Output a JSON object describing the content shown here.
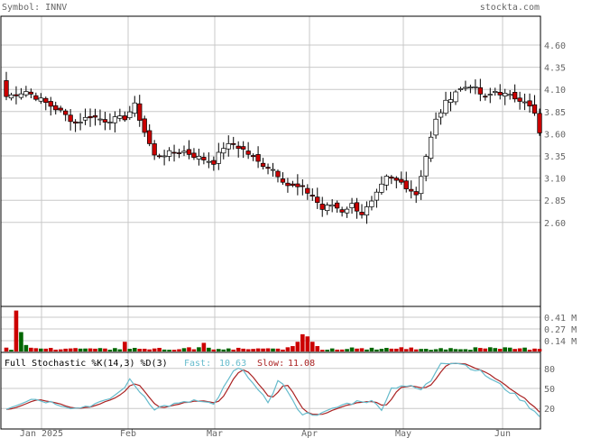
{
  "header": {
    "symbol_label": "Symbol: INNV",
    "site": "stockta.com"
  },
  "colors": {
    "up_body": "#ffffff",
    "down_body": "#cc0000",
    "candle_edge": "#000000",
    "vol_up": "#006600",
    "vol_down": "#cc0000",
    "fast": "#66bbcc",
    "slow": "#aa2222",
    "grid": "#c8c8c8",
    "text": "#666666"
  },
  "stoch": {
    "title": "Full Stochastic %K(14,3) %D(3)",
    "fast_label": "Fast:",
    "fast_value": "10.63",
    "slow_label": "Slow:",
    "slow_value": "11.08"
  },
  "chart_data": {
    "type": "candlestick",
    "price_axis": {
      "ticks": [
        "4.60",
        "4.35",
        "4.10",
        "3.85",
        "3.60",
        "3.35",
        "3.10",
        "2.85",
        "2.60"
      ],
      "ylim": [
        2.45,
        4.75
      ]
    },
    "volume_axis": {
      "ticks": [
        "0.41 M",
        "0.27 M",
        "0.14 M"
      ],
      "ylim": [
        0,
        0.41
      ]
    },
    "stoch_axis": {
      "ticks": [
        "80",
        "50",
        "20"
      ],
      "ylim": [
        0,
        100
      ]
    },
    "x_labels": [
      "Jan 2025",
      "Feb",
      "Mar",
      "Apr",
      "May",
      "Jun"
    ],
    "grid": true,
    "price_anchors": [
      [
        0,
        4.02
      ],
      [
        4,
        4.08
      ],
      [
        7,
        3.98
      ],
      [
        11,
        3.85
      ],
      [
        14,
        3.72
      ],
      [
        17,
        3.8
      ],
      [
        20,
        3.75
      ],
      [
        24,
        3.78
      ],
      [
        26,
        3.92
      ],
      [
        28,
        3.62
      ],
      [
        30,
        3.35
      ],
      [
        33,
        3.38
      ],
      [
        36,
        3.4
      ],
      [
        39,
        3.33
      ],
      [
        42,
        3.28
      ],
      [
        44,
        3.45
      ],
      [
        46,
        3.48
      ],
      [
        48,
        3.42
      ],
      [
        51,
        3.28
      ],
      [
        54,
        3.2
      ],
      [
        57,
        3.02
      ],
      [
        60,
        2.98
      ],
      [
        62,
        2.9
      ],
      [
        64,
        2.75
      ],
      [
        66,
        2.8
      ],
      [
        68,
        2.73
      ],
      [
        70,
        2.8
      ],
      [
        72,
        2.7
      ],
      [
        74,
        2.82
      ],
      [
        77,
        3.1
      ],
      [
        80,
        3.05
      ],
      [
        83,
        2.92
      ],
      [
        85,
        3.35
      ],
      [
        87,
        3.75
      ],
      [
        89,
        3.95
      ],
      [
        91,
        4.08
      ],
      [
        94,
        4.15
      ],
      [
        97,
        4.0
      ],
      [
        99,
        4.08
      ],
      [
        102,
        4.02
      ],
      [
        105,
        3.98
      ],
      [
        107,
        3.82
      ],
      [
        108,
        3.6
      ]
    ],
    "volume_spikes": {
      "2": 0.38,
      "3": 0.18,
      "4": 0.06,
      "24": 0.09,
      "40": 0.08,
      "58": 0.05,
      "59": 0.09,
      "60": 0.16,
      "61": 0.14,
      "62": 0.09,
      "63": 0.05
    },
    "stoch_anchors": [
      [
        0,
        20
      ],
      [
        5,
        35
      ],
      [
        10,
        28
      ],
      [
        14,
        20
      ],
      [
        20,
        30
      ],
      [
        23,
        45
      ],
      [
        25,
        62
      ],
      [
        28,
        38
      ],
      [
        30,
        20
      ],
      [
        33,
        25
      ],
      [
        36,
        28
      ],
      [
        38,
        32
      ],
      [
        42,
        25
      ],
      [
        46,
        75
      ],
      [
        48,
        80
      ],
      [
        51,
        45
      ],
      [
        53,
        30
      ],
      [
        55,
        60
      ],
      [
        56,
        58
      ],
      [
        58,
        30
      ],
      [
        60,
        12
      ],
      [
        64,
        12
      ],
      [
        68,
        25
      ],
      [
        72,
        32
      ],
      [
        74,
        30
      ],
      [
        76,
        20
      ],
      [
        78,
        50
      ],
      [
        80,
        55
      ],
      [
        82,
        52
      ],
      [
        84,
        48
      ],
      [
        86,
        62
      ],
      [
        88,
        90
      ],
      [
        92,
        88
      ],
      [
        96,
        75
      ],
      [
        100,
        55
      ],
      [
        104,
        35
      ],
      [
        108,
        10
      ]
    ]
  }
}
